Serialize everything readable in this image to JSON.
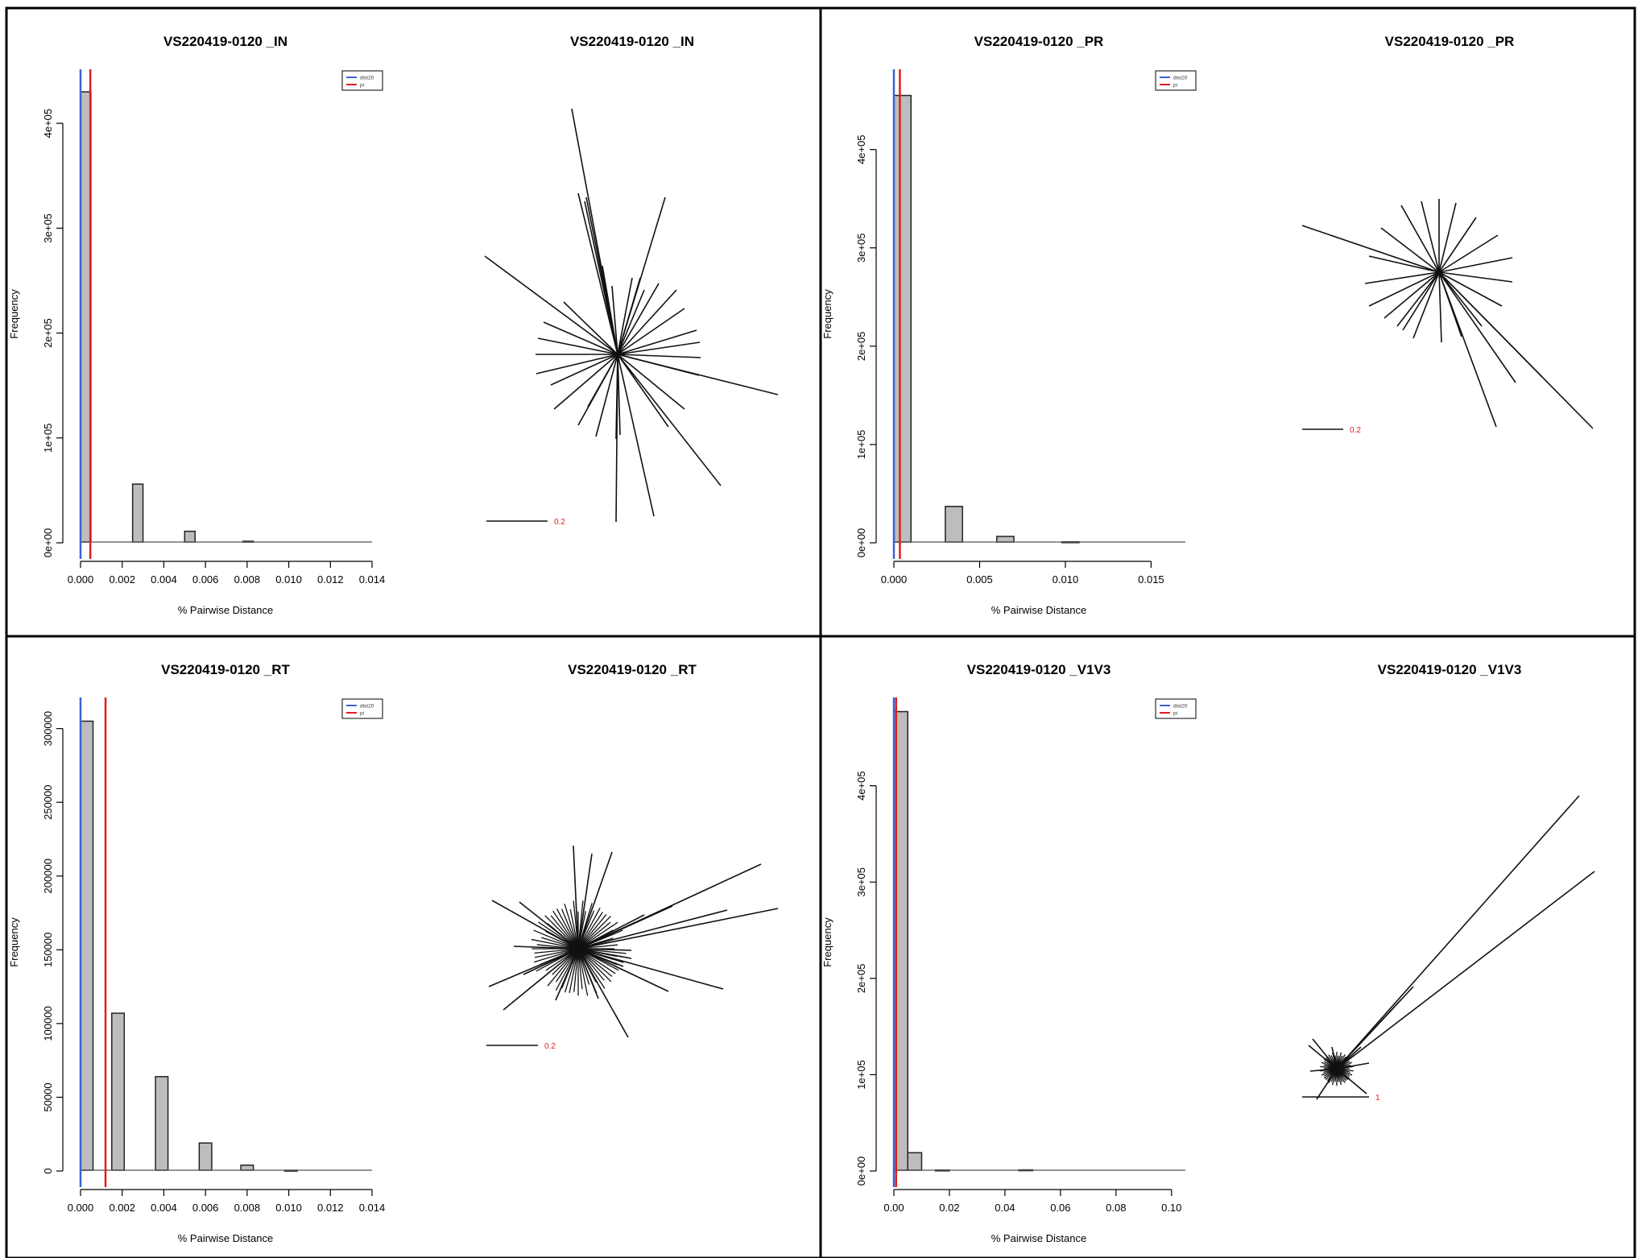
{
  "axis_label_x": "% Pairwise Distance",
  "axis_label_y": "Frequency",
  "legend_labels": [
    "dist20",
    "pi"
  ],
  "colors": {
    "dist20": "#3b63d6",
    "pi": "#e01e1e",
    "bar_fill": "#bdbdbd",
    "scale_text": "#e01e1e"
  },
  "panels": [
    {
      "id": "IN",
      "hist_title": "VS220419-0120 _IN",
      "tree_title": "VS220419-0120 _IN",
      "tree_scale_label": "0.2",
      "y_tick_labels": [
        "0e+00",
        "1e+05",
        "2e+05",
        "3e+05",
        "4e+05"
      ],
      "x_tick_labels": [
        "0.000",
        "0.002",
        "0.004",
        "0.006",
        "0.008",
        "0.010",
        "0.012",
        "0.014"
      ]
    },
    {
      "id": "PR",
      "hist_title": "VS220419-0120 _PR",
      "tree_title": "VS220419-0120 _PR",
      "tree_scale_label": "0.2",
      "y_tick_labels": [
        "0e+00",
        "1e+05",
        "2e+05",
        "3e+05",
        "4e+05"
      ],
      "x_tick_labels": [
        "0.000",
        "0.005",
        "0.010",
        "0.015"
      ]
    },
    {
      "id": "RT",
      "hist_title": "VS220419-0120 _RT",
      "tree_title": "VS220419-0120 _RT",
      "tree_scale_label": "0.2",
      "y_tick_labels": [
        "0",
        "50000",
        "100000",
        "150000",
        "200000",
        "250000",
        "300000"
      ],
      "x_tick_labels": [
        "0.000",
        "0.002",
        "0.004",
        "0.006",
        "0.008",
        "0.010",
        "0.012",
        "0.014"
      ]
    },
    {
      "id": "V1V3",
      "hist_title": "VS220419-0120 _V1V3",
      "tree_title": "VS220419-0120 _V1V3",
      "tree_scale_label": "1",
      "y_tick_labels": [
        "0e+00",
        "1e+05",
        "2e+05",
        "3e+05",
        "4e+05"
      ],
      "x_tick_labels": [
        "0.00",
        "0.02",
        "0.04",
        "0.06",
        "0.08",
        "0.10"
      ]
    }
  ],
  "chart_data": [
    {
      "type": "bar",
      "title": "VS220419-0120 _IN",
      "xlabel": "% Pairwise Distance",
      "ylabel": "Frequency",
      "xlim": [
        0,
        0.014
      ],
      "ylim": [
        0,
        450000
      ],
      "y_ticks": [
        0,
        100000,
        200000,
        300000,
        400000
      ],
      "x_ticks": [
        0,
        0.002,
        0.004,
        0.006,
        0.008,
        0.01,
        0.012,
        0.014
      ],
      "bin_width": 0.0005,
      "bins": [
        {
          "x0": 0.0,
          "value": 430000
        },
        {
          "x0": 0.0025,
          "value": 56000
        },
        {
          "x0": 0.005,
          "value": 11000
        },
        {
          "x0": 0.0078,
          "value": 1500
        }
      ],
      "vlines": [
        {
          "name": "dist20",
          "x": 0.0
        },
        {
          "name": "pi",
          "x": 0.00047
        }
      ],
      "legend": [
        "dist20",
        "pi"
      ],
      "legend_position": "top-right",
      "grid": false
    },
    {
      "type": "bar",
      "title": "VS220419-0120 _PR",
      "xlabel": "% Pairwise Distance",
      "ylabel": "Frequency",
      "xlim": [
        0,
        0.017
      ],
      "ylim": [
        0,
        480000
      ],
      "y_ticks": [
        0,
        100000,
        200000,
        300000,
        400000
      ],
      "x_ticks": [
        0,
        0.005,
        0.01,
        0.015
      ],
      "bin_width": 0.001,
      "bins": [
        {
          "x0": 0.0,
          "value": 455000
        },
        {
          "x0": 0.003,
          "value": 37000
        },
        {
          "x0": 0.006,
          "value": 6500
        },
        {
          "x0": 0.0098,
          "value": 1000
        }
      ],
      "vlines": [
        {
          "name": "dist20",
          "x": 0.0
        },
        {
          "name": "pi",
          "x": 0.00035
        }
      ],
      "legend": [
        "dist20",
        "pi"
      ],
      "legend_position": "top-right",
      "grid": false
    },
    {
      "type": "bar",
      "title": "VS220419-0120 _RT",
      "xlabel": "% Pairwise Distance",
      "ylabel": "Frequency",
      "xlim": [
        0,
        0.014
      ],
      "ylim": [
        0,
        320000
      ],
      "y_ticks": [
        0,
        50000,
        100000,
        150000,
        200000,
        250000,
        300000
      ],
      "x_ticks": [
        0,
        0.002,
        0.004,
        0.006,
        0.008,
        0.01,
        0.012,
        0.014
      ],
      "bin_width": 0.0006,
      "bins": [
        {
          "x0": 0.0,
          "value": 305000
        },
        {
          "x0": 0.0015,
          "value": 107000
        },
        {
          "x0": 0.0036,
          "value": 64000
        },
        {
          "x0": 0.0057,
          "value": 19000
        },
        {
          "x0": 0.0077,
          "value": 4000
        },
        {
          "x0": 0.0098,
          "value": 500
        }
      ],
      "vlines": [
        {
          "name": "dist20",
          "x": 0.0
        },
        {
          "name": "pi",
          "x": 0.0012
        }
      ],
      "legend": [
        "dist20",
        "pi"
      ],
      "legend_position": "top-right",
      "grid": false
    },
    {
      "type": "bar",
      "title": "VS220419-0120 _V1V3",
      "xlabel": "% Pairwise Distance",
      "ylabel": "Frequency",
      "xlim": [
        0,
        0.105
      ],
      "ylim": [
        0,
        490000
      ],
      "y_ticks": [
        0,
        100000,
        200000,
        300000,
        400000
      ],
      "x_ticks": [
        0,
        0.02,
        0.04,
        0.06,
        0.08,
        0.1
      ],
      "bin_width": 0.005,
      "bins": [
        {
          "x0": 0.0,
          "value": 477000
        },
        {
          "x0": 0.005,
          "value": 19000
        },
        {
          "x0": 0.015,
          "value": 1000
        },
        {
          "x0": 0.045,
          "value": 1200
        }
      ],
      "vlines": [
        {
          "name": "dist20",
          "x": 0.0
        },
        {
          "name": "pi",
          "x": 0.0008
        }
      ],
      "legend": [
        "dist20",
        "pi"
      ],
      "legend_position": "top-right",
      "grid": false
    }
  ]
}
